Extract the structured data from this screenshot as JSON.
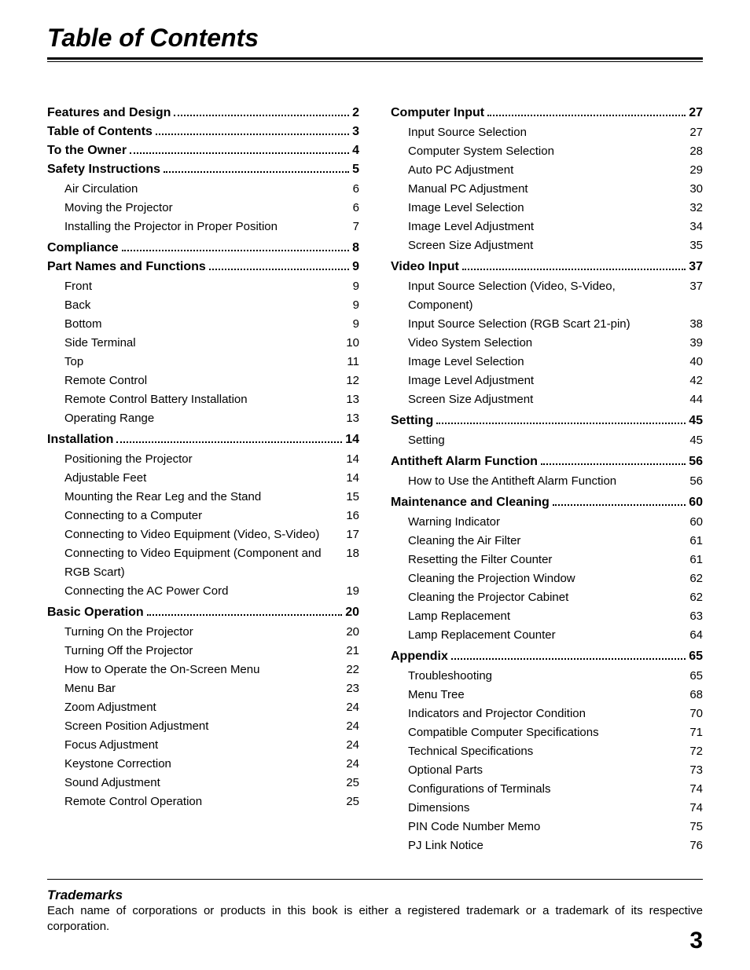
{
  "page_title": "Table of Contents",
  "page_number": "3",
  "trademarks": {
    "heading": "Trademarks",
    "text": "Each name of corporations or products in this book is either a registered trademark or a trademark of its respective corporation."
  },
  "typography": {
    "title_fontsize_pt": 24,
    "section_fontsize_pt": 12,
    "sub_fontsize_pt": 11,
    "pagenum_fontsize_pt": 22,
    "colors": {
      "text": "#000000",
      "background": "#ffffff"
    }
  },
  "left": [
    {
      "title": "Features and Design",
      "page": "2",
      "subs": []
    },
    {
      "title": "Table of Contents",
      "page": "3",
      "subs": []
    },
    {
      "title": "To the Owner",
      "page": "4",
      "subs": []
    },
    {
      "title": "Safety Instructions",
      "page": "5",
      "subs": [
        {
          "title": "Air Circulation",
          "page": "6"
        },
        {
          "title": "Moving the Projector",
          "page": "6"
        },
        {
          "title": "Installing the Projector in Proper Position",
          "page": "7"
        }
      ]
    },
    {
      "title": "Compliance",
      "page": "8",
      "subs": []
    },
    {
      "title": "Part Names and Functions",
      "page": "9",
      "subs": [
        {
          "title": "Front",
          "page": "9"
        },
        {
          "title": "Back",
          "page": "9"
        },
        {
          "title": "Bottom",
          "page": "9"
        },
        {
          "title": "Side Terminal",
          "page": "10"
        },
        {
          "title": "Top",
          "page": "11"
        },
        {
          "title": "Remote Control",
          "page": "12"
        },
        {
          "title": "Remote Control Battery Installation",
          "page": "13"
        },
        {
          "title": "Operating Range",
          "page": "13"
        }
      ]
    },
    {
      "title": "Installation",
      "page": "14",
      "subs": [
        {
          "title": "Positioning the Projector",
          "page": "14"
        },
        {
          "title": "Adjustable Feet",
          "page": "14"
        },
        {
          "title": "Mounting the Rear Leg and the Stand",
          "page": "15"
        },
        {
          "title": "Connecting to a Computer",
          "page": "16"
        },
        {
          "title": "Connecting to Video Equipment (Video, S-Video)",
          "page": "17"
        },
        {
          "title": "Connecting to Video Equipment (Component and RGB Scart)",
          "page": "18"
        },
        {
          "title": "Connecting the AC Power Cord",
          "page": "19"
        }
      ]
    },
    {
      "title": "Basic Operation",
      "page": "20",
      "subs": [
        {
          "title": "Turning On the Projector",
          "page": "20"
        },
        {
          "title": "Turning Off the Projector",
          "page": "21"
        },
        {
          "title": "How to Operate the On-Screen Menu",
          "page": "22"
        },
        {
          "title": "Menu Bar",
          "page": "23"
        },
        {
          "title": "Zoom Adjustment",
          "page": "24"
        },
        {
          "title": "Screen Position Adjustment",
          "page": "24"
        },
        {
          "title": "Focus Adjustment",
          "page": "24"
        },
        {
          "title": "Keystone Correction",
          "page": "24"
        },
        {
          "title": "Sound Adjustment",
          "page": "25"
        },
        {
          "title": "Remote Control Operation",
          "page": "25"
        }
      ]
    }
  ],
  "right": [
    {
      "title": "Computer Input",
      "page": "27",
      "subs": [
        {
          "title": "Input Source Selection",
          "page": "27"
        },
        {
          "title": "Computer System Selection",
          "page": "28"
        },
        {
          "title": "Auto PC Adjustment",
          "page": "29"
        },
        {
          "title": "Manual PC Adjustment",
          "page": "30"
        },
        {
          "title": "Image Level Selection",
          "page": "32"
        },
        {
          "title": "Image Level Adjustment",
          "page": "34"
        },
        {
          "title": "Screen Size Adjustment",
          "page": "35"
        }
      ]
    },
    {
      "title": "Video Input",
      "page": "37",
      "subs": [
        {
          "title": "Input Source Selection (Video, S-Video, Component)",
          "page": "37"
        },
        {
          "title": "Input Source Selection (RGB Scart 21-pin)",
          "page": "38"
        },
        {
          "title": "Video System Selection",
          "page": "39"
        },
        {
          "title": "Image Level Selection",
          "page": "40"
        },
        {
          "title": "Image Level Adjustment",
          "page": "42"
        },
        {
          "title": "Screen Size Adjustment",
          "page": "44"
        }
      ]
    },
    {
      "title": "Setting",
      "page": "45",
      "subs": [
        {
          "title": "Setting",
          "page": "45"
        }
      ]
    },
    {
      "title": "Antitheft Alarm Function",
      "page": "56",
      "subs": [
        {
          "title": "How to Use the Antitheft Alarm Function",
          "page": "56"
        }
      ]
    },
    {
      "title": "Maintenance and Cleaning",
      "page": "60",
      "subs": [
        {
          "title": "Warning Indicator",
          "page": "60"
        },
        {
          "title": "Cleaning the Air Filter",
          "page": "61"
        },
        {
          "title": "Resetting the Filter Counter",
          "page": "61"
        },
        {
          "title": "Cleaning the Projection Window",
          "page": "62"
        },
        {
          "title": "Cleaning the Projector Cabinet",
          "page": "62"
        },
        {
          "title": "Lamp Replacement",
          "page": "63"
        },
        {
          "title": "Lamp Replacement Counter",
          "page": "64"
        }
      ]
    },
    {
      "title": "Appendix",
      "page": "65",
      "subs": [
        {
          "title": "Troubleshooting",
          "page": "65"
        },
        {
          "title": "Menu Tree",
          "page": "68"
        },
        {
          "title": "Indicators and Projector Condition",
          "page": "70"
        },
        {
          "title": "Compatible Computer Specifications",
          "page": "71"
        },
        {
          "title": "Technical Specifications",
          "page": "72"
        },
        {
          "title": "Optional Parts",
          "page": "73"
        },
        {
          "title": "Configurations of Terminals",
          "page": "74"
        },
        {
          "title": "Dimensions",
          "page": "74"
        },
        {
          "title": "PIN Code Number Memo",
          "page": "75"
        },
        {
          "title": "PJ Link Notice",
          "page": "76"
        }
      ]
    }
  ]
}
